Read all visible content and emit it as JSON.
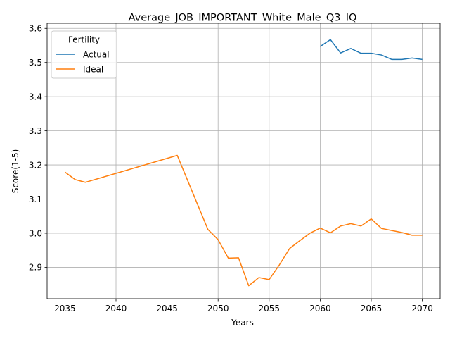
{
  "chart_data": {
    "type": "line",
    "title": "Average_JOB_IMPORTANT_White_Male_Q3_IQ",
    "xlabel": "Years",
    "ylabel": "Score(1-5)",
    "xlim": [
      2033.25,
      2071.75
    ],
    "ylim": [
      2.808,
      3.615
    ],
    "xticks": [
      2035,
      2040,
      2045,
      2050,
      2055,
      2060,
      2065,
      2070
    ],
    "yticks": [
      2.9,
      3.0,
      3.1,
      3.2,
      3.3,
      3.4,
      3.5,
      3.6
    ],
    "grid": true,
    "legend": {
      "title": "Fertility",
      "placement": "top-left"
    },
    "series": [
      {
        "name": "Actual",
        "color": "#1f77b4",
        "x": [
          2060,
          2061,
          2062,
          2063,
          2064,
          2065,
          2066,
          2067,
          2068,
          2069,
          2070
        ],
        "y": [
          3.547,
          3.567,
          3.528,
          3.541,
          3.527,
          3.527,
          3.522,
          3.509,
          3.509,
          3.513,
          3.509
        ]
      },
      {
        "name": "Ideal",
        "color": "#ff7f0e",
        "x": [
          2035,
          2036,
          2037,
          2046,
          2049,
          2050,
          2051,
          2052,
          2053,
          2054,
          2055,
          2056,
          2057,
          2058,
          2059,
          2060,
          2061,
          2062,
          2063,
          2064,
          2065,
          2066,
          2067,
          2068,
          2069,
          2070
        ],
        "y": [
          3.179,
          3.157,
          3.149,
          3.228,
          3.011,
          2.981,
          2.927,
          2.928,
          2.846,
          2.87,
          2.864,
          2.907,
          2.955,
          2.978,
          3.0,
          3.015,
          3.001,
          3.021,
          3.028,
          3.021,
          3.042,
          3.014,
          3.008,
          3.002,
          2.994,
          2.994
        ]
      }
    ]
  }
}
